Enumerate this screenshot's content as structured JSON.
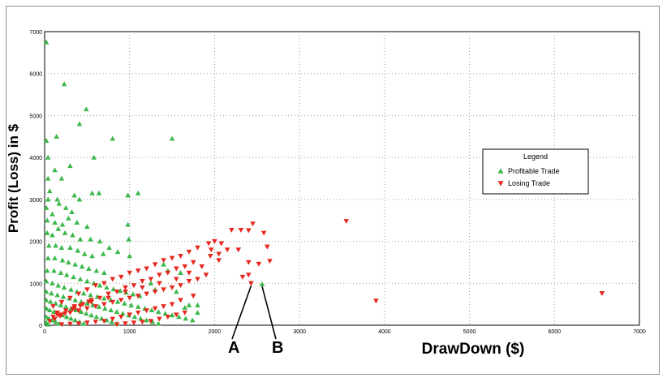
{
  "chart_data": {
    "type": "scatter",
    "title": "",
    "xlabel": "DrawDown ($)",
    "ylabel": "Profit (Loss) in $",
    "xlim": [
      0,
      7000
    ],
    "ylim": [
      0,
      7000
    ],
    "x_ticks": [
      "0",
      "1000",
      "2000",
      "3000",
      "4000",
      "5000",
      "6000",
      "7000"
    ],
    "y_ticks": [
      "0",
      "1000",
      "2000",
      "3000",
      "4000",
      "5000",
      "6000",
      "7000"
    ],
    "grid": true,
    "grid_style": "dotted",
    "legend": {
      "title": "Legend",
      "position": "right",
      "entries": [
        "Profitable Trade",
        "Losing Trade"
      ]
    },
    "annotations": [
      {
        "label": "A",
        "x": 2430,
        "y": 1000
      },
      {
        "label": "B",
        "x": 2560,
        "y": 980
      }
    ],
    "series": [
      {
        "name": "Profitable Trade",
        "marker": "triangle-up",
        "color": "#3cb84a",
        "points": [
          [
            20,
            6750
          ],
          [
            230,
            5750
          ],
          [
            490,
            5150
          ],
          [
            410,
            4800
          ],
          [
            140,
            4500
          ],
          [
            20,
            4400
          ],
          [
            40,
            4000
          ],
          [
            580,
            4000
          ],
          [
            800,
            4450
          ],
          [
            1500,
            4450
          ],
          [
            40,
            3500
          ],
          [
            120,
            3700
          ],
          [
            200,
            3500
          ],
          [
            300,
            3800
          ],
          [
            60,
            3200
          ],
          [
            350,
            3100
          ],
          [
            410,
            3000
          ],
          [
            560,
            3150
          ],
          [
            640,
            3150
          ],
          [
            980,
            3100
          ],
          [
            1100,
            3150
          ],
          [
            40,
            3000
          ],
          [
            150,
            3000
          ],
          [
            20,
            2800
          ],
          [
            90,
            2650
          ],
          [
            170,
            2900
          ],
          [
            250,
            2800
          ],
          [
            320,
            2700
          ],
          [
            30,
            2500
          ],
          [
            120,
            2450
          ],
          [
            210,
            2400
          ],
          [
            280,
            2550
          ],
          [
            380,
            2450
          ],
          [
            500,
            2350
          ],
          [
            30,
            2200
          ],
          [
            90,
            2150
          ],
          [
            160,
            2300
          ],
          [
            240,
            2200
          ],
          [
            330,
            2150
          ],
          [
            420,
            2050
          ],
          [
            540,
            2050
          ],
          [
            650,
            2000
          ],
          [
            980,
            2400
          ],
          [
            990,
            2050
          ],
          [
            50,
            1900
          ],
          [
            130,
            1900
          ],
          [
            200,
            1850
          ],
          [
            300,
            1850
          ],
          [
            390,
            1780
          ],
          [
            470,
            1700
          ],
          [
            560,
            1650
          ],
          [
            690,
            1700
          ],
          [
            760,
            1850
          ],
          [
            860,
            1750
          ],
          [
            1000,
            1650
          ],
          [
            40,
            1600
          ],
          [
            120,
            1600
          ],
          [
            210,
            1550
          ],
          [
            280,
            1500
          ],
          [
            360,
            1450
          ],
          [
            440,
            1400
          ],
          [
            520,
            1350
          ],
          [
            610,
            1300
          ],
          [
            700,
            1250
          ],
          [
            30,
            1300
          ],
          [
            110,
            1300
          ],
          [
            190,
            1250
          ],
          [
            260,
            1200
          ],
          [
            340,
            1150
          ],
          [
            420,
            1100
          ],
          [
            500,
            1050
          ],
          [
            580,
            1000
          ],
          [
            650,
            950
          ],
          [
            730,
            900
          ],
          [
            810,
            860
          ],
          [
            890,
            820
          ],
          [
            960,
            780
          ],
          [
            1040,
            740
          ],
          [
            1120,
            700
          ],
          [
            20,
            1050
          ],
          [
            90,
            1000
          ],
          [
            160,
            950
          ],
          [
            230,
            900
          ],
          [
            310,
            850
          ],
          [
            380,
            800
          ],
          [
            460,
            760
          ],
          [
            540,
            720
          ],
          [
            620,
            680
          ],
          [
            700,
            640
          ],
          [
            780,
            600
          ],
          [
            860,
            560
          ],
          [
            940,
            520
          ],
          [
            1020,
            480
          ],
          [
            1100,
            440
          ],
          [
            1180,
            400
          ],
          [
            1260,
            360
          ],
          [
            1340,
            320
          ],
          [
            1420,
            280
          ],
          [
            1500,
            240
          ],
          [
            1580,
            200
          ],
          [
            1660,
            160
          ],
          [
            1740,
            120
          ],
          [
            20,
            800
          ],
          [
            80,
            760
          ],
          [
            150,
            720
          ],
          [
            220,
            680
          ],
          [
            290,
            640
          ],
          [
            360,
            600
          ],
          [
            430,
            560
          ],
          [
            500,
            520
          ],
          [
            570,
            480
          ],
          [
            640,
            440
          ],
          [
            710,
            400
          ],
          [
            780,
            360
          ],
          [
            850,
            320
          ],
          [
            920,
            280
          ],
          [
            990,
            240
          ],
          [
            1060,
            200
          ],
          [
            1130,
            160
          ],
          [
            1200,
            120
          ],
          [
            1270,
            80
          ],
          [
            1340,
            40
          ],
          [
            20,
            600
          ],
          [
            70,
            560
          ],
          [
            130,
            520
          ],
          [
            190,
            480
          ],
          [
            250,
            440
          ],
          [
            310,
            400
          ],
          [
            370,
            360
          ],
          [
            430,
            320
          ],
          [
            490,
            280
          ],
          [
            550,
            240
          ],
          [
            610,
            200
          ],
          [
            670,
            160
          ],
          [
            730,
            120
          ],
          [
            790,
            80
          ],
          [
            850,
            40
          ],
          [
            20,
            400
          ],
          [
            60,
            360
          ],
          [
            110,
            320
          ],
          [
            160,
            280
          ],
          [
            210,
            240
          ],
          [
            260,
            200
          ],
          [
            310,
            160
          ],
          [
            360,
            120
          ],
          [
            410,
            80
          ],
          [
            460,
            40
          ],
          [
            20,
            200
          ],
          [
            50,
            160
          ],
          [
            90,
            120
          ],
          [
            130,
            80
          ],
          [
            170,
            40
          ],
          [
            20,
            60
          ],
          [
            40,
            20
          ],
          [
            1700,
            480
          ],
          [
            1800,
            480
          ],
          [
            1300,
            850
          ],
          [
            1550,
            800
          ],
          [
            1650,
            420
          ],
          [
            1800,
            300
          ],
          [
            2560,
            980
          ],
          [
            1250,
            1000
          ],
          [
            1400,
            1450
          ],
          [
            1450,
            1300
          ],
          [
            1600,
            1250
          ]
        ]
      },
      {
        "name": "Losing Trade",
        "marker": "triangle-down",
        "color": "#e8261e",
        "points": [
          [
            2450,
            2420
          ],
          [
            2200,
            2270
          ],
          [
            2310,
            2270
          ],
          [
            2400,
            2260
          ],
          [
            2580,
            2200
          ],
          [
            2000,
            2000
          ],
          [
            1930,
            1950
          ],
          [
            2080,
            1950
          ],
          [
            2150,
            1800
          ],
          [
            2280,
            1800
          ],
          [
            2620,
            1870
          ],
          [
            1960,
            1800
          ],
          [
            2050,
            1700
          ],
          [
            2400,
            1500
          ],
          [
            2520,
            1460
          ],
          [
            2650,
            1530
          ],
          [
            2400,
            1200
          ],
          [
            2330,
            1150
          ],
          [
            2430,
            1000
          ],
          [
            3550,
            2480
          ],
          [
            3900,
            580
          ],
          [
            6560,
            760
          ],
          [
            1800,
            1850
          ],
          [
            1700,
            1750
          ],
          [
            1600,
            1650
          ],
          [
            1500,
            1600
          ],
          [
            1400,
            1550
          ],
          [
            1300,
            1450
          ],
          [
            1200,
            1350
          ],
          [
            1100,
            1300
          ],
          [
            1000,
            1250
          ],
          [
            900,
            1150
          ],
          [
            800,
            1100
          ],
          [
            700,
            1000
          ],
          [
            600,
            950
          ],
          [
            500,
            850
          ],
          [
            400,
            750
          ],
          [
            300,
            650
          ],
          [
            200,
            550
          ],
          [
            100,
            450
          ],
          [
            1750,
            1500
          ],
          [
            1650,
            1400
          ],
          [
            1550,
            1350
          ],
          [
            1450,
            1250
          ],
          [
            1350,
            1200
          ],
          [
            1250,
            1100
          ],
          [
            1150,
            1050
          ],
          [
            1050,
            950
          ],
          [
            950,
            900
          ],
          [
            850,
            800
          ],
          [
            750,
            750
          ],
          [
            650,
            650
          ],
          [
            550,
            600
          ],
          [
            450,
            500
          ],
          [
            350,
            450
          ],
          [
            250,
            350
          ],
          [
            150,
            300
          ],
          [
            1850,
            1400
          ],
          [
            1900,
            1200
          ],
          [
            1800,
            1100
          ],
          [
            1700,
            1050
          ],
          [
            1600,
            950
          ],
          [
            1500,
            900
          ],
          [
            1400,
            850
          ],
          [
            1300,
            800
          ],
          [
            1200,
            750
          ],
          [
            1100,
            700
          ],
          [
            1000,
            650
          ],
          [
            900,
            600
          ],
          [
            800,
            550
          ],
          [
            700,
            500
          ],
          [
            600,
            450
          ],
          [
            500,
            400
          ],
          [
            400,
            350
          ],
          [
            300,
            300
          ],
          [
            200,
            250
          ],
          [
            100,
            200
          ],
          [
            1750,
            700
          ],
          [
            1600,
            600
          ],
          [
            1500,
            500
          ],
          [
            1400,
            450
          ],
          [
            1300,
            400
          ],
          [
            1200,
            350
          ],
          [
            1100,
            300
          ],
          [
            1000,
            250
          ],
          [
            900,
            200
          ],
          [
            800,
            150
          ],
          [
            700,
            100
          ],
          [
            600,
            80
          ],
          [
            500,
            60
          ],
          [
            400,
            40
          ],
          [
            300,
            30
          ],
          [
            200,
            20
          ],
          [
            1650,
            300
          ],
          [
            1550,
            250
          ],
          [
            1450,
            200
          ],
          [
            1350,
            150
          ],
          [
            1250,
            100
          ],
          [
            1150,
            80
          ],
          [
            1050,
            60
          ],
          [
            950,
            40
          ],
          [
            850,
            20
          ],
          [
            1950,
            1650
          ],
          [
            2050,
            1550
          ],
          [
            1700,
            1250
          ],
          [
            1550,
            1100
          ],
          [
            1350,
            1000
          ],
          [
            1150,
            900
          ],
          [
            950,
            800
          ],
          [
            750,
            650
          ],
          [
            550,
            550
          ],
          [
            350,
            400
          ],
          [
            150,
            250
          ],
          [
            60,
            100
          ],
          [
            120,
            150
          ],
          [
            180,
            220
          ],
          [
            240,
            280
          ],
          [
            330,
            380
          ],
          [
            420,
            460
          ],
          [
            520,
            560
          ]
        ]
      }
    ]
  }
}
